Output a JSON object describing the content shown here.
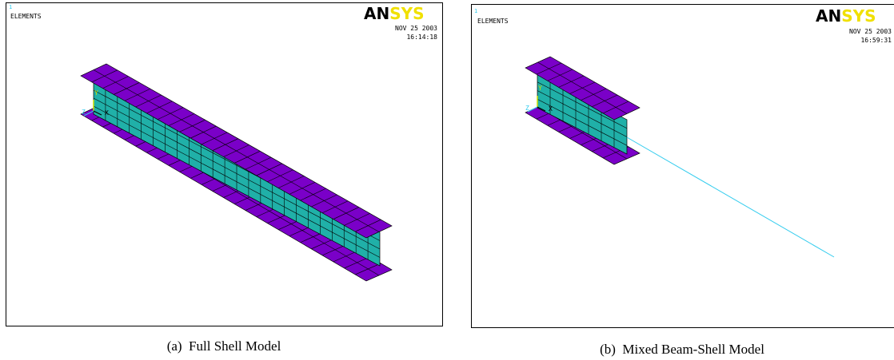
{
  "panels": [
    {
      "window": "1",
      "label": "ELEMENTS",
      "logo_an": "AN",
      "logo_sys": "SYS",
      "date": "NOV 25 2003",
      "time": "16:14:18",
      "axis_y": "Y",
      "axis_z": "Z",
      "axis_x": "X",
      "caption": "(a)  Full Shell Model"
    },
    {
      "window": "1",
      "label": "ELEMENTS",
      "logo_an": "AN",
      "logo_sys": "SYS",
      "date": "NOV 25 2003",
      "time": "16:59:31",
      "axis_y": "Y",
      "axis_z": "Z",
      "axis_x": "X",
      "caption": "(b)  Mixed Beam-Shell Model"
    }
  ]
}
